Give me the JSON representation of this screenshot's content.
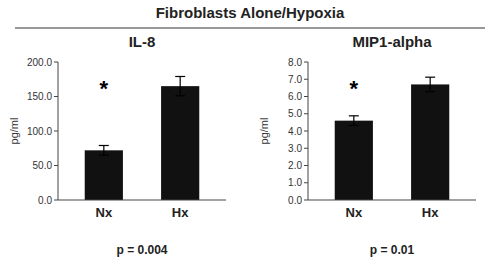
{
  "title": "Fibroblasts Alone/Hypoxia",
  "chart_data": [
    {
      "type": "bar",
      "title": "IL-8",
      "categories": [
        "Nx",
        "Hx"
      ],
      "values": [
        72.0,
        165.0
      ],
      "errors": [
        7.0,
        14.0
      ],
      "color": "#111111",
      "ylim": [
        0.0,
        200.0
      ],
      "yticks": [
        {
          "value": 0.0,
          "label": "0.0"
        },
        {
          "value": 50.0,
          "label": "50.0"
        },
        {
          "value": 100.0,
          "label": "100.0"
        },
        {
          "value": 150.0,
          "label": "150.0"
        },
        {
          "value": 200.0,
          "label": "200.0"
        }
      ],
      "y_label": "pg/ml",
      "grid": false,
      "annotations": [
        {
          "text": "*",
          "x": "Nx",
          "y": 162
        },
        {
          "text": "p = 0.004"
        }
      ]
    },
    {
      "type": "bar",
      "title": "MIP1-alpha",
      "categories": [
        "Nx",
        "Hx"
      ],
      "values": [
        4.6,
        6.7
      ],
      "errors": [
        0.28,
        0.42
      ],
      "color": "#111111",
      "ylim": [
        0.0,
        8.0
      ],
      "yticks": [
        {
          "value": 0.0,
          "label": "0.0"
        },
        {
          "value": 1.0,
          "label": "1.0"
        },
        {
          "value": 2.0,
          "label": "2.0"
        },
        {
          "value": 3.0,
          "label": "3.0"
        },
        {
          "value": 4.0,
          "label": "4.0"
        },
        {
          "value": 5.0,
          "label": "5.0"
        },
        {
          "value": 6.0,
          "label": "6.0"
        },
        {
          "value": 7.0,
          "label": "7.0"
        },
        {
          "value": 8.0,
          "label": "8.0"
        }
      ],
      "y_label": "pg/ml",
      "grid": false,
      "annotations": [
        {
          "text": "*",
          "x": "Nx",
          "y": 6.5
        },
        {
          "text": "p = 0.01"
        }
      ]
    }
  ]
}
